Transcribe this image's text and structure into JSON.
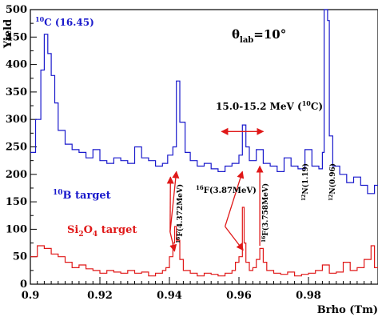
{
  "chart_data": {
    "type": "line",
    "title": "",
    "xlabel": "Brho (Tm)",
    "ylabel": "Yield",
    "xlim": [
      0.9,
      1.0
    ],
    "ylim": [
      0,
      500
    ],
    "xticks": [
      "0.9",
      "0.92",
      "0.94",
      "0.96",
      "0.98"
    ],
    "yticks": [
      "0",
      "50",
      "100",
      "150",
      "200",
      "250",
      "300",
      "350",
      "400",
      "450",
      "500"
    ],
    "grid": false,
    "series": [
      {
        "name": "10B target",
        "color": "#1a1acc",
        "step": true,
        "x": [
          0.9,
          0.9015,
          0.903,
          0.904,
          0.905,
          0.906,
          0.907,
          0.908,
          0.91,
          0.912,
          0.914,
          0.916,
          0.918,
          0.92,
          0.922,
          0.924,
          0.926,
          0.928,
          0.93,
          0.932,
          0.934,
          0.936,
          0.938,
          0.9395,
          0.941,
          0.942,
          0.943,
          0.9445,
          0.946,
          0.948,
          0.95,
          0.952,
          0.954,
          0.956,
          0.958,
          0.96,
          0.961,
          0.962,
          0.963,
          0.965,
          0.967,
          0.969,
          0.971,
          0.973,
          0.975,
          0.977,
          0.979,
          0.981,
          0.983,
          0.984,
          0.9845,
          0.985,
          0.9855,
          0.986,
          0.987,
          0.989,
          0.991,
          0.993,
          0.995,
          0.997,
          0.999
        ],
        "y": [
          240,
          300,
          390,
          455,
          420,
          380,
          330,
          280,
          255,
          245,
          240,
          230,
          245,
          225,
          220,
          230,
          225,
          220,
          250,
          230,
          225,
          215,
          220,
          235,
          250,
          370,
          295,
          240,
          225,
          215,
          220,
          210,
          205,
          215,
          220,
          235,
          290,
          250,
          225,
          245,
          220,
          215,
          205,
          230,
          215,
          210,
          245,
          215,
          210,
          240,
          500,
          500,
          480,
          270,
          215,
          200,
          185,
          195,
          180,
          165,
          180
        ]
      },
      {
        "name": "Si2O4 target",
        "color": "#e01818",
        "step": true,
        "x": [
          0.9,
          0.902,
          0.904,
          0.906,
          0.908,
          0.91,
          0.912,
          0.914,
          0.916,
          0.918,
          0.92,
          0.922,
          0.924,
          0.926,
          0.928,
          0.93,
          0.932,
          0.934,
          0.936,
          0.938,
          0.939,
          0.94,
          0.941,
          0.9415,
          0.942,
          0.943,
          0.944,
          0.946,
          0.948,
          0.95,
          0.952,
          0.954,
          0.956,
          0.958,
          0.959,
          0.96,
          0.961,
          0.9615,
          0.962,
          0.963,
          0.964,
          0.965,
          0.966,
          0.967,
          0.968,
          0.97,
          0.972,
          0.974,
          0.976,
          0.978,
          0.98,
          0.982,
          0.984,
          0.986,
          0.988,
          0.99,
          0.992,
          0.994,
          0.996,
          0.998,
          0.999
        ],
        "y": [
          50,
          70,
          65,
          55,
          50,
          40,
          30,
          35,
          28,
          25,
          20,
          25,
          22,
          20,
          25,
          20,
          22,
          15,
          20,
          25,
          30,
          50,
          75,
          105,
          80,
          45,
          25,
          20,
          15,
          20,
          18,
          15,
          20,
          25,
          40,
          50,
          140,
          75,
          40,
          25,
          30,
          45,
          65,
          40,
          25,
          20,
          18,
          22,
          15,
          18,
          20,
          25,
          35,
          20,
          22,
          40,
          25,
          30,
          45,
          70,
          30
        ]
      }
    ]
  },
  "annotations": {
    "theta": {
      "main": "θ",
      "sub": "lab",
      "rest": "=10°"
    },
    "c10_label": {
      "sup": "10",
      "rest": "C (16.45)"
    },
    "range_label": {
      "main": "15.0-15.2 MeV (",
      "sup": "10",
      "rest": "C)"
    },
    "b10_target": {
      "sup": "10",
      "rest": "B target"
    },
    "si_target": {
      "main": "Si",
      "sub": "2",
      "mid": "O",
      "sub2": "4",
      "rest": " target"
    },
    "f16_4372": {
      "sup": "16",
      "rest": "F(4.372MeV)"
    },
    "f16_387": {
      "sup": "16",
      "rest": "F(3.87MeV)"
    },
    "f16_3758": {
      "sup": "16",
      "rest": "F(3.758MeV)"
    },
    "n12_119": {
      "sup": "12",
      "rest": "N(1.19)"
    },
    "n12_096": {
      "sup": "12",
      "rest": "N(0.96)"
    }
  },
  "colors": {
    "blue": "#1a1acc",
    "red": "#e01818"
  }
}
